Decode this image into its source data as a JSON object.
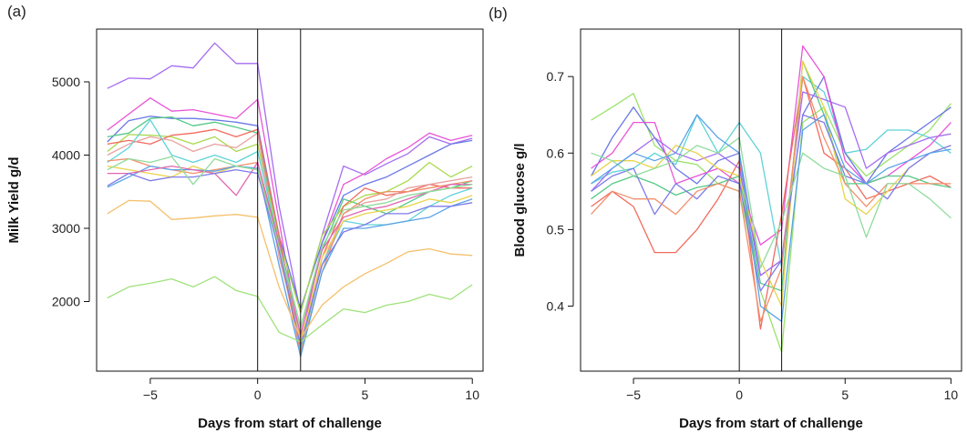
{
  "chart_data": [
    {
      "panel_label": "(a)",
      "type": "line",
      "xlabel": "Days from start of challenge",
      "ylabel": "Milk Yield g/d",
      "xlim": [
        -7.5,
        10.5
      ],
      "ylim": [
        1050,
        5720
      ],
      "xticks": [
        -5,
        0,
        5,
        10
      ],
      "yticks": [
        2000,
        3000,
        4000,
        5000
      ],
      "vlines": [
        0,
        2
      ],
      "grid": false,
      "x": [
        -7,
        -6,
        -5,
        -4,
        -3,
        -2,
        -1,
        0,
        1,
        2,
        3,
        4,
        5,
        6,
        7,
        8,
        9,
        10
      ],
      "series": [
        {
          "color": "#a56cf0",
          "values": [
            4910,
            5050,
            5040,
            5220,
            5190,
            5530,
            5250,
            5250,
            3300,
            1850,
            2900,
            3850,
            3730,
            3880,
            4020,
            4250,
            4150,
            4230
          ]
        },
        {
          "color": "#e855d8",
          "values": [
            4340,
            4560,
            4780,
            4600,
            4620,
            4560,
            4500,
            4760,
            3100,
            1400,
            2800,
            3600,
            3750,
            3950,
            4100,
            4300,
            4200,
            4270
          ]
        },
        {
          "color": "#6a78e6",
          "values": [
            4180,
            4470,
            4530,
            4500,
            4500,
            4480,
            4450,
            4400,
            2900,
            1900,
            2800,
            3450,
            3600,
            3700,
            3850,
            4000,
            4150,
            4200
          ]
        },
        {
          "color": "#55c987",
          "values": [
            4250,
            4300,
            4500,
            4520,
            4400,
            4450,
            4380,
            4300,
            2800,
            1650,
            2700,
            3400,
            3300,
            3200,
            3350,
            3500,
            3550,
            3650
          ]
        },
        {
          "color": "#a8d94c",
          "values": [
            4050,
            4280,
            4270,
            4250,
            4150,
            4250,
            4050,
            4150,
            2850,
            1850,
            2900,
            3300,
            3450,
            3500,
            3650,
            3900,
            3700,
            3850
          ]
        },
        {
          "color": "#f26b5e",
          "values": [
            4150,
            4200,
            4150,
            4270,
            4300,
            4350,
            4250,
            4350,
            2900,
            1350,
            2600,
            3300,
            3550,
            3450,
            3500,
            3600,
            3550,
            3550
          ]
        },
        {
          "color": "#e8a2a0",
          "values": [
            4000,
            4150,
            4250,
            4200,
            4050,
            4150,
            4100,
            4300,
            2600,
            1500,
            2500,
            3200,
            3350,
            3400,
            3550,
            3600,
            3650,
            3700
          ]
        },
        {
          "color": "#5fd3d8",
          "values": [
            3900,
            4100,
            4480,
            4000,
            3900,
            4000,
            3900,
            4050,
            2800,
            1350,
            2500,
            3100,
            3050,
            3050,
            3100,
            3300,
            3450,
            3550
          ]
        },
        {
          "color": "#f28f6c",
          "values": [
            3920,
            3950,
            3850,
            3800,
            3750,
            3800,
            3850,
            3900,
            2700,
            1300,
            2400,
            3200,
            3400,
            3500,
            3500,
            3550,
            3600,
            3650
          ]
        },
        {
          "color": "#e8d44a",
          "values": [
            3850,
            3800,
            3750,
            3700,
            3850,
            3750,
            3850,
            3800,
            2700,
            1450,
            2600,
            3100,
            3200,
            3250,
            3300,
            3400,
            3350,
            3450
          ]
        },
        {
          "color": "#5aa3e8",
          "values": [
            3560,
            3700,
            3850,
            3800,
            3800,
            3780,
            3850,
            3820,
            2500,
            1250,
            2400,
            3000,
            3000,
            3050,
            3100,
            3150,
            3300,
            3400
          ]
        },
        {
          "color": "#e066b0",
          "values": [
            3750,
            3750,
            3800,
            3850,
            3800,
            3750,
            3450,
            3900,
            2800,
            1550,
            2700,
            3150,
            3250,
            3300,
            3400,
            3500,
            3600,
            3600
          ]
        },
        {
          "color": "#7e7be8",
          "values": [
            3580,
            3750,
            3650,
            3700,
            3700,
            3750,
            3800,
            3750,
            2700,
            1400,
            2500,
            2950,
            3050,
            3200,
            3200,
            3300,
            3300,
            3350
          ]
        },
        {
          "color": "#8fdc9c",
          "values": [
            3800,
            3950,
            3900,
            3980,
            3600,
            3950,
            3850,
            3800,
            2750,
            1650,
            2750,
            3250,
            3300,
            3350,
            3450,
            3500,
            3550,
            3600
          ]
        },
        {
          "color": "#f4c06b",
          "values": [
            3200,
            3380,
            3370,
            3120,
            3140,
            3170,
            3190,
            3150,
            2200,
            1500,
            1950,
            2200,
            2380,
            2520,
            2680,
            2720,
            2650,
            2630
          ]
        },
        {
          "color": "#9fe27a",
          "values": [
            2050,
            2200,
            2250,
            2310,
            2200,
            2340,
            2150,
            2070,
            1580,
            1450,
            1680,
            1900,
            1850,
            1950,
            2000,
            2100,
            2030,
            2230
          ]
        }
      ]
    },
    {
      "panel_label": "(b)",
      "type": "line",
      "xlabel": "Days from start of challenge",
      "ylabel": "Blood glucose g/l",
      "xlim": [
        -7.5,
        10.5
      ],
      "ylim": [
        0.315,
        0.762
      ],
      "xticks": [
        -5,
        0,
        5,
        10
      ],
      "yticks": [
        0.4,
        0.5,
        0.6,
        0.7
      ],
      "vlines": [
        0,
        2
      ],
      "grid": false,
      "x": [
        -7,
        -6,
        -5,
        -4,
        -3,
        -2,
        -1,
        0,
        1,
        2,
        3,
        4,
        5,
        6,
        7,
        8,
        9,
        10
      ],
      "series": [
        {
          "color": "#9be36b",
          "values": [
            0.643,
            0.66,
            0.678,
            0.61,
            0.59,
            0.585,
            0.56,
            0.55,
            0.42,
            0.34,
            0.64,
            0.66,
            0.6,
            0.57,
            0.59,
            0.61,
            0.63,
            0.665
          ]
        },
        {
          "color": "#5fd3d8",
          "values": [
            0.56,
            0.575,
            0.58,
            0.6,
            0.585,
            0.65,
            0.6,
            0.64,
            0.6,
            0.45,
            0.7,
            0.68,
            0.6,
            0.605,
            0.63,
            0.63,
            0.62,
            0.6
          ]
        },
        {
          "color": "#6a78e6",
          "values": [
            0.57,
            0.62,
            0.66,
            0.62,
            0.58,
            0.56,
            0.59,
            0.6,
            0.44,
            0.46,
            0.65,
            0.7,
            0.6,
            0.56,
            0.6,
            0.62,
            0.64,
            0.66
          ]
        },
        {
          "color": "#e855d8",
          "values": [
            0.58,
            0.6,
            0.64,
            0.64,
            0.56,
            0.57,
            0.58,
            0.56,
            0.48,
            0.5,
            0.74,
            0.7,
            0.59,
            0.56,
            0.57,
            0.59,
            0.61,
            0.64
          ]
        },
        {
          "color": "#f26b5e",
          "values": [
            0.53,
            0.55,
            0.53,
            0.47,
            0.47,
            0.5,
            0.54,
            0.59,
            0.37,
            0.52,
            0.7,
            0.6,
            0.58,
            0.54,
            0.55,
            0.56,
            0.57,
            0.555
          ]
        },
        {
          "color": "#55c987",
          "values": [
            0.54,
            0.56,
            0.57,
            0.56,
            0.545,
            0.555,
            0.56,
            0.57,
            0.43,
            0.42,
            0.72,
            0.65,
            0.56,
            0.56,
            0.57,
            0.57,
            0.56,
            0.555
          ]
        },
        {
          "color": "#a56cf0",
          "values": [
            0.55,
            0.58,
            0.6,
            0.62,
            0.6,
            0.59,
            0.6,
            0.58,
            0.44,
            0.46,
            0.68,
            0.67,
            0.66,
            0.58,
            0.6,
            0.61,
            0.62,
            0.625
          ]
        },
        {
          "color": "#e8d44a",
          "values": [
            0.57,
            0.59,
            0.59,
            0.58,
            0.61,
            0.6,
            0.58,
            0.57,
            0.46,
            0.4,
            0.72,
            0.66,
            0.54,
            0.52,
            0.55,
            0.58,
            0.6,
            0.61
          ]
        },
        {
          "color": "#7e7be8",
          "values": [
            0.55,
            0.57,
            0.58,
            0.52,
            0.56,
            0.54,
            0.57,
            0.56,
            0.42,
            0.46,
            0.65,
            0.64,
            0.57,
            0.56,
            0.54,
            0.58,
            0.6,
            0.61
          ]
        },
        {
          "color": "#f28f6c",
          "values": [
            0.52,
            0.55,
            0.54,
            0.54,
            0.52,
            0.55,
            0.56,
            0.55,
            0.38,
            0.45,
            0.7,
            0.62,
            0.56,
            0.53,
            0.56,
            0.56,
            0.56,
            0.56
          ]
        },
        {
          "color": "#8fdc9c",
          "values": [
            0.6,
            0.59,
            0.57,
            0.58,
            0.59,
            0.61,
            0.6,
            0.62,
            0.45,
            0.51,
            0.6,
            0.58,
            0.57,
            0.49,
            0.56,
            0.56,
            0.54,
            0.515
          ]
        },
        {
          "color": "#5aa3e8",
          "values": [
            0.56,
            0.58,
            0.6,
            0.59,
            0.6,
            0.65,
            0.62,
            0.6,
            0.4,
            0.38,
            0.63,
            0.65,
            0.58,
            0.56,
            0.58,
            0.59,
            0.6,
            0.605
          ]
        }
      ]
    }
  ]
}
